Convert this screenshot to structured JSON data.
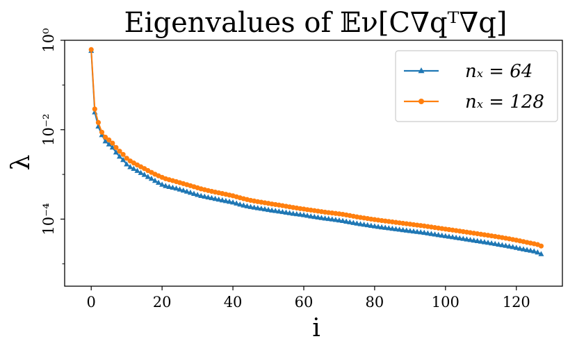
{
  "chart_data": {
    "type": "line",
    "title": "Eigenvalues of 𝔼ν[C∇qᵀ∇q]",
    "xlabel": "i",
    "ylabel": "λ",
    "yscale": "log",
    "xlim": [
      -7.5,
      133
    ],
    "ylim_log10": [
      -5.5,
      0
    ],
    "x_ticks": [
      0,
      20,
      40,
      60,
      80,
      100,
      120
    ],
    "x_tick_labels": [
      "0",
      "20",
      "40",
      "60",
      "80",
      "100",
      "120"
    ],
    "y_ticks_log10": [
      0,
      -2,
      -4
    ],
    "y_tick_labels": [
      "10⁰",
      "10⁻²",
      "10⁻⁴"
    ],
    "legend_position": "top-right",
    "series": [
      {
        "name": "n_x = 64",
        "label": "nₓ = 64",
        "color": "#1f77b4",
        "marker": "triangle",
        "x_start": 0,
        "values": [
          0.58,
          0.0245,
          0.0118,
          0.0076,
          0.0055,
          0.0047,
          0.004,
          0.0031,
          0.0025,
          0.0021,
          0.00168,
          0.00146,
          0.00133,
          0.0012,
          0.00108,
          0.00098,
          0.00088,
          0.0008,
          0.00072,
          0.00065,
          0.00059,
          0.00055,
          0.000525,
          0.000505,
          0.000485,
          0.00046,
          0.000435,
          0.000412,
          0.00039,
          0.000368,
          0.000348,
          0.00033,
          0.000318,
          0.000306,
          0.000295,
          0.000284,
          0.000273,
          0.000263,
          0.000254,
          0.000245,
          0.000236,
          0.000224,
          0.000212,
          0.000202,
          0.000194,
          0.000187,
          0.000181,
          0.000176,
          0.000171,
          0.000166,
          0.000161,
          0.000156,
          0.000152,
          0.000148,
          0.000144,
          0.00014,
          0.000136,
          0.000132,
          0.000129,
          0.000126,
          0.000123,
          0.000119,
          0.000115,
          0.000112,
          0.000109,
          0.000106,
          0.000103,
          0.000101,
          9.85e-05,
          9.6e-05,
          9.35e-05,
          9.1e-05,
          8.8e-05,
          8.5e-05,
          8.2e-05,
          7.95e-05,
          7.72e-05,
          7.5e-05,
          7.3e-05,
          7.1e-05,
          6.9e-05,
          6.72e-05,
          6.55e-05,
          6.4e-05,
          6.25e-05,
          6.1e-05,
          5.96e-05,
          5.82e-05,
          5.68e-05,
          5.55e-05,
          5.42e-05,
          5.3e-05,
          5.18e-05,
          5.06e-05,
          4.94e-05,
          4.8e-05,
          4.66e-05,
          4.53e-05,
          4.4e-05,
          4.28e-05,
          4.16e-05,
          4.05e-05,
          3.94e-05,
          3.83e-05,
          3.72e-05,
          3.62e-05,
          3.52e-05,
          3.42e-05,
          3.32e-05,
          3.23e-05,
          3.14e-05,
          3.05e-05,
          2.96e-05,
          2.87e-05,
          2.78e-05,
          2.69e-05,
          2.61e-05,
          2.53e-05,
          2.45e-05,
          2.37e-05,
          2.28e-05,
          2.19e-05,
          2.11e-05,
          2.04e-05,
          1.97e-05,
          1.9e-05,
          1.8e-05,
          1.65e-05
        ]
      },
      {
        "name": "n_x = 128",
        "label": "nₓ = 128",
        "color": "#ff7f0e",
        "marker": "circle",
        "x_start": 0,
        "values": [
          0.62,
          0.029,
          0.0145,
          0.0088,
          0.0068,
          0.0059,
          0.005,
          0.004,
          0.0033,
          0.0028,
          0.0023,
          0.002,
          0.0018,
          0.00163,
          0.00148,
          0.00135,
          0.00122,
          0.00111,
          0.00101,
          0.00093,
          0.00086,
          0.0008,
          0.00076,
          0.000725,
          0.00069,
          0.000655,
          0.000622,
          0.00059,
          0.00056,
          0.00053,
          0.000502,
          0.000475,
          0.000455,
          0.000436,
          0.000418,
          0.000402,
          0.000388,
          0.000373,
          0.000359,
          0.000345,
          0.000332,
          0.000316,
          0.0003,
          0.000286,
          0.000274,
          0.000263,
          0.000254,
          0.000246,
          0.000239,
          0.000232,
          0.000225,
          0.000218,
          0.000212,
          0.000206,
          0.0002,
          0.000194,
          0.000188,
          0.000182,
          0.000177,
          0.000172,
          0.000168,
          0.000163,
          0.000159,
          0.000155,
          0.000151,
          0.000147,
          0.000143,
          0.00014,
          0.000137,
          0.000134,
          0.000131,
          0.000128,
          0.000124,
          0.00012,
          0.000116,
          0.000112,
          0.000109,
          0.000106,
          0.000103,
          0.0001,
          9.75e-05,
          9.5e-05,
          9.28e-05,
          9.06e-05,
          8.85e-05,
          8.65e-05,
          8.45e-05,
          8.25e-05,
          8.06e-05,
          7.88e-05,
          7.7e-05,
          7.52e-05,
          7.35e-05,
          7.18e-05,
          7.01e-05,
          6.83e-05,
          6.65e-05,
          6.47e-05,
          6.3e-05,
          6.14e-05,
          5.98e-05,
          5.83e-05,
          5.68e-05,
          5.53e-05,
          5.39e-05,
          5.25e-05,
          5.11e-05,
          4.97e-05,
          4.84e-05,
          4.71e-05,
          4.58e-05,
          4.46e-05,
          4.34e-05,
          4.22e-05,
          4.1e-05,
          3.98e-05,
          3.86e-05,
          3.74e-05,
          3.62e-05,
          3.5e-05,
          3.38e-05,
          3.26e-05,
          3.14e-05,
          3.02e-05,
          2.91e-05,
          2.81e-05,
          2.7e-05,
          2.5e-05
        ]
      }
    ]
  }
}
